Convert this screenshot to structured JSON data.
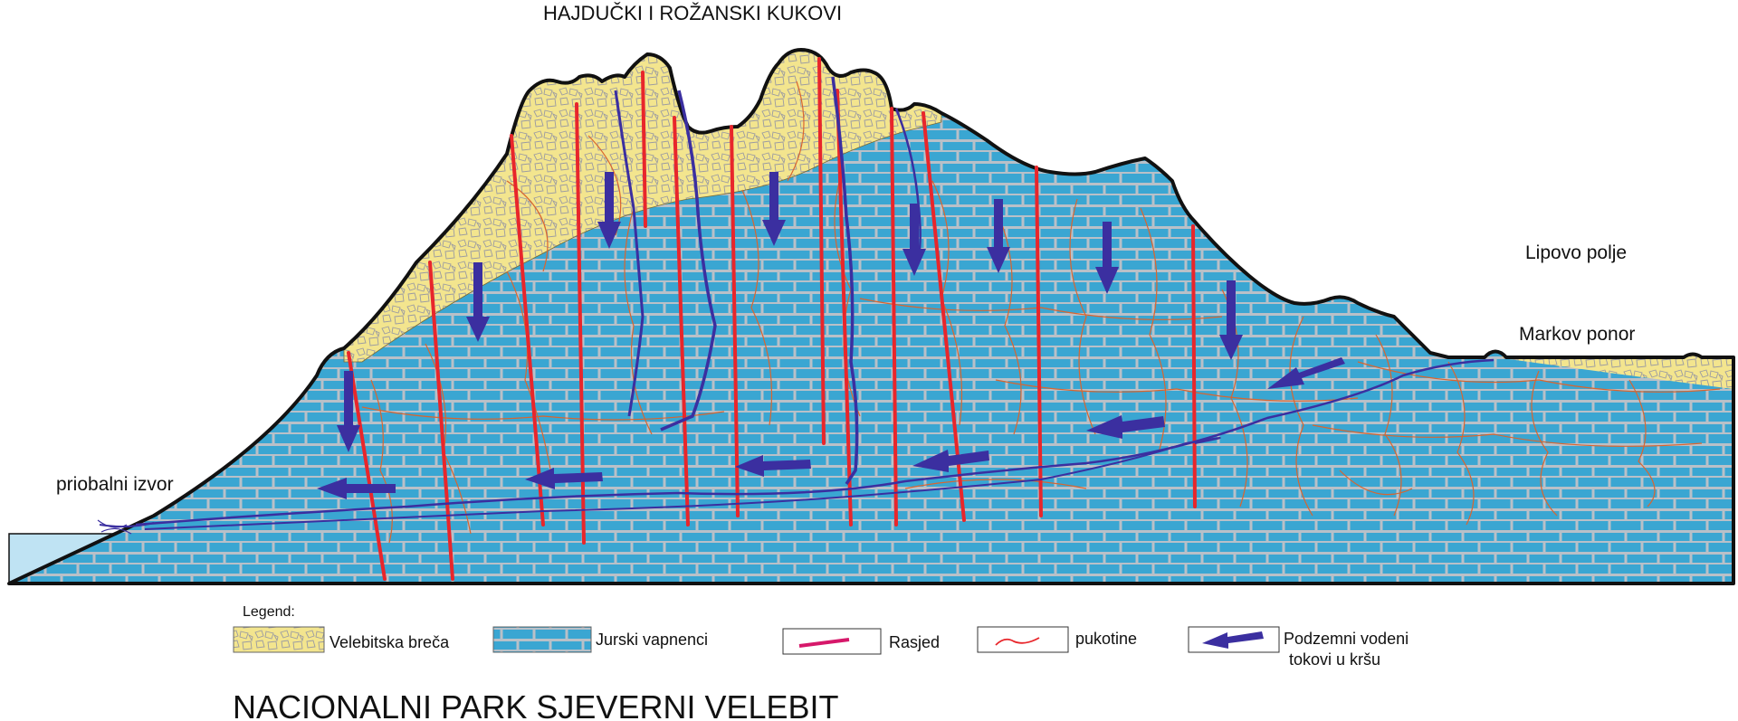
{
  "labels": {
    "top": "HAJDUČKI I ROŽANSKI KUKOVI",
    "lipovo": "Lipovo polje",
    "markov": "Markov ponor",
    "priobalni": "priobalni izvor"
  },
  "legend": {
    "heading": "Legend:",
    "items": [
      {
        "key": "breca",
        "label": "Velebitska breča"
      },
      {
        "key": "vapnenci",
        "label": "Jurski vapnenci"
      },
      {
        "key": "rasjed",
        "label": "Rasjed"
      },
      {
        "key": "pukotine",
        "label": "pukotine"
      },
      {
        "key": "tokovi",
        "label": "Podzemni vodeni",
        "label2": "tokovi u kršu"
      }
    ]
  },
  "footer_title": "NACIONALNI PARK SJEVERNI VELEBIT",
  "colors": {
    "limestone": "#3aa6d2",
    "mortar": "#b9c0c8",
    "breccia": "#f3e58e",
    "fault": "#e8262b",
    "crack": "#d9652f",
    "flow": "#3b2fa0",
    "sea": "#bfe3f3",
    "outline": "#111111"
  }
}
